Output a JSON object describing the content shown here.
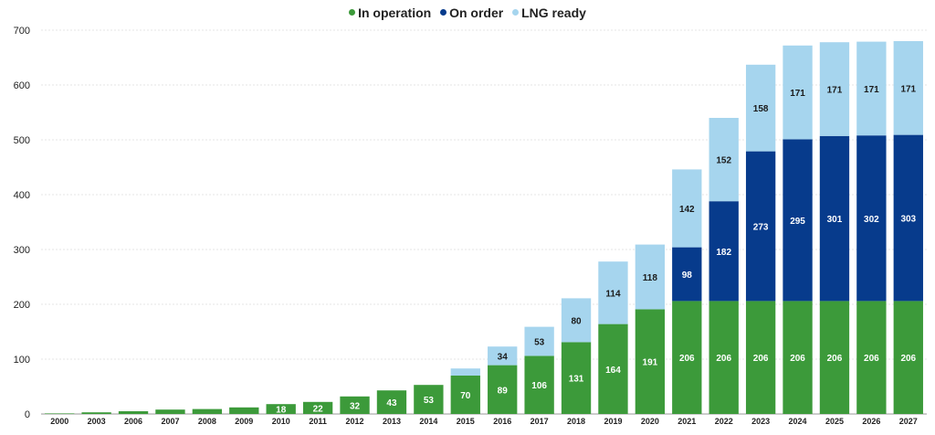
{
  "chart_data": {
    "type": "bar",
    "stacked": true,
    "title": "",
    "xlabel": "",
    "ylabel": "",
    "ylim": [
      0,
      700
    ],
    "yticks": [
      0,
      100,
      200,
      300,
      400,
      500,
      600,
      700
    ],
    "grid": true,
    "legend_position": "top-center",
    "categories": [
      "2000",
      "2003",
      "2006",
      "2007",
      "2008",
      "2009",
      "2010",
      "2011",
      "2012",
      "2013",
      "2014",
      "2015",
      "2016",
      "2017",
      "2018",
      "2019",
      "2020",
      "2021",
      "2022",
      "2023",
      "2024",
      "2025",
      "2026",
      "2027"
    ],
    "series": [
      {
        "name": "In operation",
        "color": "#3c9a3a",
        "values": [
          1,
          3,
          5,
          8,
          9,
          12,
          18,
          22,
          32,
          43,
          53,
          70,
          89,
          106,
          131,
          164,
          191,
          206,
          206,
          206,
          206,
          206,
          206,
          206
        ],
        "labels": [
          "",
          "",
          "",
          "",
          "",
          "",
          "18",
          "22",
          "32",
          "43",
          "53",
          "70",
          "89",
          "106",
          "131",
          "164",
          "191",
          "206",
          "206",
          "206",
          "206",
          "206",
          "206",
          "206"
        ],
        "label_color": "#ffffff"
      },
      {
        "name": "On order",
        "color": "#073b8c",
        "values": [
          0,
          0,
          0,
          0,
          0,
          0,
          0,
          0,
          0,
          0,
          0,
          0,
          0,
          0,
          0,
          0,
          0,
          98,
          182,
          273,
          295,
          301,
          302,
          303
        ],
        "labels": [
          "",
          "",
          "",
          "",
          "",
          "",
          "",
          "",
          "",
          "",
          "",
          "",
          "",
          "",
          "",
          "",
          "",
          "98",
          "182",
          "273",
          "295",
          "301",
          "302",
          "303"
        ],
        "label_color": "#ffffff"
      },
      {
        "name": "LNG ready",
        "color": "#a6d5ee",
        "values": [
          0,
          0,
          0,
          0,
          0,
          0,
          0,
          0,
          0,
          0,
          0,
          13,
          34,
          53,
          80,
          114,
          118,
          142,
          152,
          158,
          171,
          171,
          171,
          171
        ],
        "labels": [
          "",
          "",
          "",
          "",
          "",
          "",
          "",
          "",
          "",
          "",
          "",
          "",
          "34",
          "53",
          "80",
          "114",
          "118",
          "142",
          "152",
          "158",
          "171",
          "171",
          "171",
          "171"
        ],
        "label_color": "#1a1a1a"
      }
    ]
  }
}
